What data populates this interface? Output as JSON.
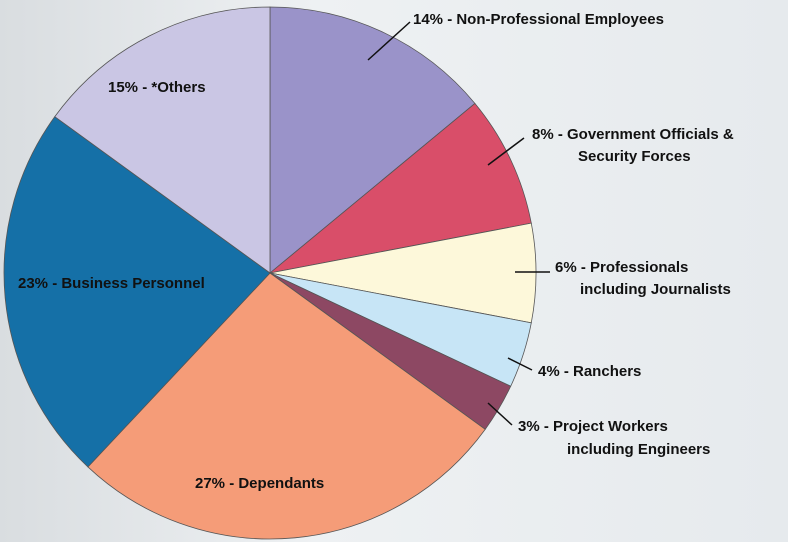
{
  "chart_data": {
    "type": "pie",
    "categories": [
      "Non-Professional Employees",
      "Government Officials & Security Forces",
      "Professionals including Journalists",
      "Ranchers",
      "Project Workers including Engineers",
      "Dependants",
      "Business Personnel",
      "*Others"
    ],
    "values": [
      14,
      8,
      6,
      4,
      3,
      27,
      23,
      15
    ],
    "labels": [
      [
        "14% - Non-Professional Employees"
      ],
      [
        "8% - Government Officials &",
        "Security Forces"
      ],
      [
        "6% - Professionals",
        "including Journalists"
      ],
      [
        "4% - Ranchers"
      ],
      [
        "3% - Project Workers",
        "including Engineers"
      ],
      [
        "27% - Dependants"
      ],
      [
        "23% - Business Personnel"
      ],
      [
        "15% - *Others"
      ]
    ],
    "colors": [
      "#9a93c9",
      "#d94e69",
      "#fdf8da",
      "#c7e5f6",
      "#8d4863",
      "#f59c78",
      "#1570a7",
      "#cac6e4"
    ]
  }
}
